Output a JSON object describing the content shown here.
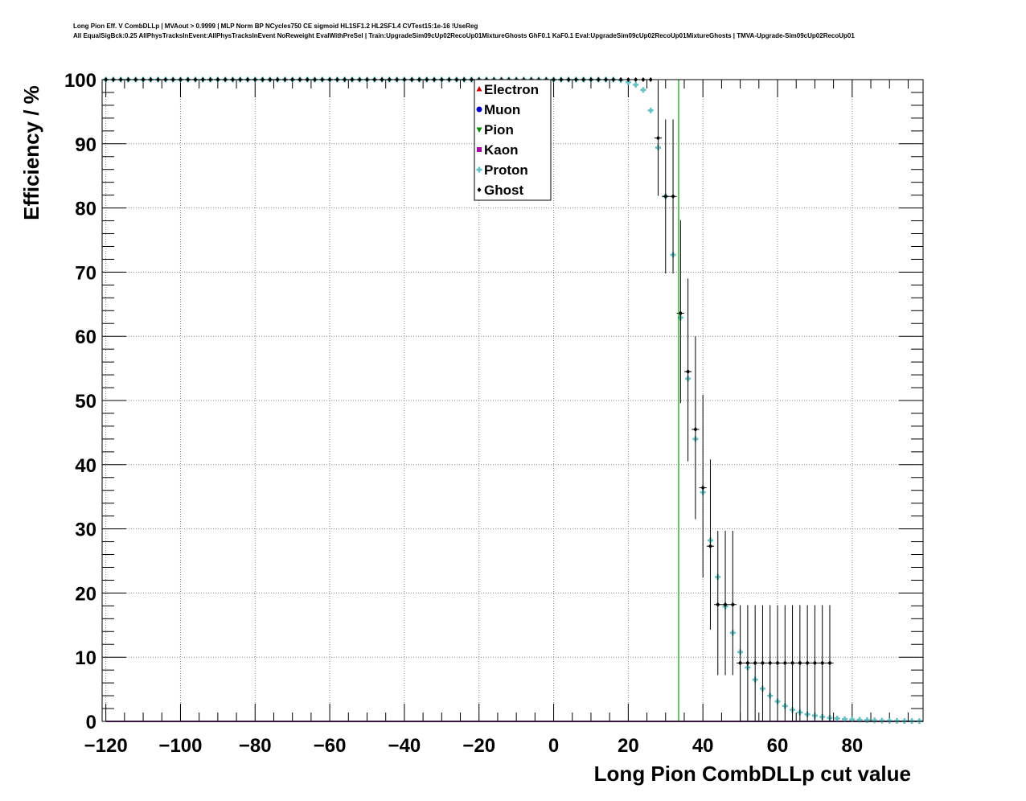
{
  "title_lines": [
    "Long Pion Eff. V CombDLLp | MVAout > 0.9999 | MLP Norm BP NCycles750 CE sigmoid HL1SF1.2 HL2SF1.4 CVTest15:1e-16 !UseReg",
    "All EqualSigBck:0.25 AllPhysTracksInEvent:AllPhysTracksInEvent NoReweight EvalWithPreSel | Train:UpgradeSim09cUp02RecoUp01MixtureGhosts GhF0.1 KaF0.1 Eval:UpgradeSim09cUp02RecoUp01MixtureGhosts | TMVA-Upgrade-Sim09cUp02RecoUp01"
  ],
  "chart_data": {
    "type": "scatter",
    "xlabel": "Long Pion CombDLLp cut value",
    "ylabel": "Efficiency / %",
    "xlim": [
      -121,
      99
    ],
    "ylim": [
      0,
      100
    ],
    "x_ticks": [
      -120,
      -100,
      -80,
      -60,
      -40,
      -20,
      0,
      20,
      40,
      60,
      80
    ],
    "x_tick_labels": [
      "−120",
      "−100",
      "−80",
      "−60",
      "−40",
      "−20",
      "0",
      "20",
      "40",
      "60",
      "80"
    ],
    "y_ticks": [
      0,
      10,
      20,
      30,
      40,
      50,
      60,
      70,
      80,
      90,
      100
    ],
    "y_tick_labels": [
      "0",
      "10",
      "20",
      "30",
      "40",
      "50",
      "60",
      "70",
      "80",
      "90",
      "100"
    ],
    "grid": true,
    "legend_position": "top-center",
    "cut_line_x": 33.5,
    "cut_line_color": "#00a000",
    "series": [
      {
        "name": "Electron",
        "color": "#cc0000",
        "marker": "triangle-up",
        "x": [
          -120,
          99
        ],
        "y": [
          0,
          0
        ]
      },
      {
        "name": "Muon",
        "color": "#0000cc",
        "marker": "circle",
        "x": [
          -120,
          99
        ],
        "y": [
          0,
          0
        ]
      },
      {
        "name": "Pion",
        "color": "#008800",
        "marker": "triangle-down",
        "x": [
          -120,
          99
        ],
        "y": [
          0,
          0
        ]
      },
      {
        "name": "Kaon",
        "color": "#aa00aa",
        "marker": "square",
        "x": [
          -120,
          99
        ],
        "y": [
          0,
          0
        ]
      },
      {
        "name": "Proton",
        "color": "#66c2c2",
        "marker": "cross",
        "x": [
          -120,
          -118,
          -116,
          -114,
          -112,
          -110,
          -108,
          -106,
          -104,
          -102,
          -100,
          -98,
          -96,
          -94,
          -92,
          -90,
          -88,
          -86,
          -84,
          -82,
          -80,
          -78,
          -76,
          -74,
          -72,
          -70,
          -68,
          -66,
          -64,
          -62,
          -60,
          -58,
          -56,
          -54,
          -52,
          -50,
          -48,
          -46,
          -44,
          -42,
          -40,
          -38,
          -36,
          -34,
          -32,
          -30,
          -28,
          -26,
          -24,
          -22,
          -20,
          -18,
          -16,
          -14,
          -12,
          -10,
          -8,
          -6,
          -4,
          -2,
          0,
          2,
          4,
          6,
          8,
          10,
          12,
          14,
          16,
          18,
          20,
          22,
          24,
          26,
          28,
          30,
          32,
          34,
          36,
          38,
          40,
          42,
          44,
          46,
          48,
          50,
          52,
          54,
          56,
          58,
          60,
          62,
          64,
          66,
          68,
          70,
          72,
          74,
          76,
          78,
          80,
          82,
          84,
          86,
          88,
          90,
          92,
          94,
          96,
          98
        ],
        "y": [
          100,
          100,
          100,
          100,
          100,
          100,
          100,
          100,
          100,
          100,
          100,
          100,
          100,
          100,
          100,
          100,
          100,
          100,
          100,
          100,
          100,
          100,
          100,
          100,
          100,
          100,
          100,
          100,
          100,
          100,
          100,
          100,
          100,
          100,
          100,
          100,
          100,
          100,
          100,
          100,
          100,
          100,
          100,
          100,
          100,
          100,
          100,
          100,
          100,
          100,
          100,
          100,
          100,
          100,
          100,
          100,
          100,
          100,
          100,
          100,
          100,
          100,
          100,
          100,
          100,
          100,
          100,
          100,
          100,
          99.9,
          99.6,
          99.2,
          98.4,
          95.2,
          89.4,
          81.8,
          72.7,
          62.9,
          53.4,
          44.0,
          35.7,
          28.2,
          22.5,
          17.9,
          13.8,
          10.8,
          8.4,
          6.5,
          5.1,
          4.0,
          3.1,
          2.4,
          1.8,
          1.4,
          1.1,
          0.9,
          0.7,
          0.55,
          0.45,
          0.35,
          0.3,
          0.25,
          0.2,
          0.15,
          0.12,
          0.1,
          0.08,
          0.06,
          0.05,
          0.04
        ]
      },
      {
        "name": "Ghost",
        "color": "#000000",
        "marker": "diamond",
        "x": [
          -120,
          -118,
          -116,
          -114,
          -112,
          -110,
          -108,
          -106,
          -104,
          -102,
          -100,
          -98,
          -96,
          -94,
          -92,
          -90,
          -88,
          -86,
          -84,
          -82,
          -80,
          -78,
          -76,
          -74,
          -72,
          -70,
          -68,
          -66,
          -64,
          -62,
          -60,
          -58,
          -56,
          -54,
          -52,
          -50,
          -48,
          -46,
          -44,
          -42,
          -40,
          -38,
          -36,
          -34,
          -32,
          -30,
          -28,
          -26,
          -24,
          -22,
          -20,
          -18,
          -16,
          -14,
          -12,
          -10,
          -8,
          -6,
          -4,
          -2,
          0,
          2,
          4,
          6,
          8,
          10,
          12,
          14,
          16,
          18,
          20,
          22,
          24,
          26,
          28,
          30,
          32,
          34,
          36,
          38,
          40,
          42,
          44,
          46,
          48,
          50,
          52,
          54,
          56,
          58,
          60,
          62,
          64,
          66,
          68,
          70,
          72,
          74
        ],
        "y": [
          100,
          100,
          100,
          100,
          100,
          100,
          100,
          100,
          100,
          100,
          100,
          100,
          100,
          100,
          100,
          100,
          100,
          100,
          100,
          100,
          100,
          100,
          100,
          100,
          100,
          100,
          100,
          100,
          100,
          100,
          100,
          100,
          100,
          100,
          100,
          100,
          100,
          100,
          100,
          100,
          100,
          100,
          100,
          100,
          100,
          100,
          100,
          100,
          100,
          100,
          100,
          100,
          100,
          100,
          100,
          100,
          100,
          100,
          100,
          100,
          100,
          100,
          100,
          100,
          100,
          100,
          100,
          100,
          100,
          100,
          100,
          100,
          100,
          100,
          90.9,
          81.8,
          81.8,
          63.6,
          54.5,
          45.5,
          36.4,
          27.3,
          18.2,
          18.2,
          18.2,
          9.1,
          9.1,
          9.1,
          9.1,
          9.1,
          9.1,
          9.1,
          9.1,
          9.1,
          9.1,
          9.1,
          9.1,
          9.1
        ],
        "yerr_low": [
          0,
          0,
          0,
          0,
          0,
          0,
          0,
          0,
          0,
          0,
          0,
          0,
          0,
          0,
          0,
          0,
          0,
          0,
          0,
          0,
          0,
          0,
          0,
          0,
          0,
          0,
          0,
          0,
          0,
          0,
          0,
          0,
          0,
          0,
          0,
          0,
          0,
          0,
          0,
          0,
          0,
          0,
          0,
          0,
          0,
          0,
          0,
          0,
          0,
          0,
          0,
          0,
          0,
          0,
          0,
          0,
          0,
          0,
          0,
          0,
          0,
          0,
          0,
          0,
          0,
          0,
          0,
          0,
          0,
          0,
          0,
          0,
          0,
          0,
          9,
          12,
          12,
          14,
          14,
          14,
          14,
          13,
          11,
          11,
          11,
          9,
          9,
          9,
          9,
          9,
          9,
          9,
          9,
          9,
          9,
          9,
          9,
          9
        ],
        "yerr_high": [
          0,
          0,
          0,
          0,
          0,
          0,
          0,
          0,
          0,
          0,
          0,
          0,
          0,
          0,
          0,
          0,
          0,
          0,
          0,
          0,
          0,
          0,
          0,
          0,
          0,
          0,
          0,
          0,
          0,
          0,
          0,
          0,
          0,
          0,
          0,
          0,
          0,
          0,
          0,
          0,
          0,
          0,
          0,
          0,
          0,
          0,
          0,
          0,
          0,
          0,
          0,
          0,
          0,
          0,
          0,
          0,
          0,
          0,
          0,
          0,
          0,
          0,
          0,
          0,
          0,
          0,
          0,
          0,
          0,
          0,
          0,
          0,
          0,
          0,
          9,
          12,
          12,
          14.5,
          14.5,
          14.5,
          14.5,
          13.5,
          11.5,
          11.5,
          11.5,
          9,
          9,
          9,
          9,
          9,
          9,
          9,
          9,
          9,
          9,
          9,
          9,
          9
        ]
      }
    ]
  }
}
